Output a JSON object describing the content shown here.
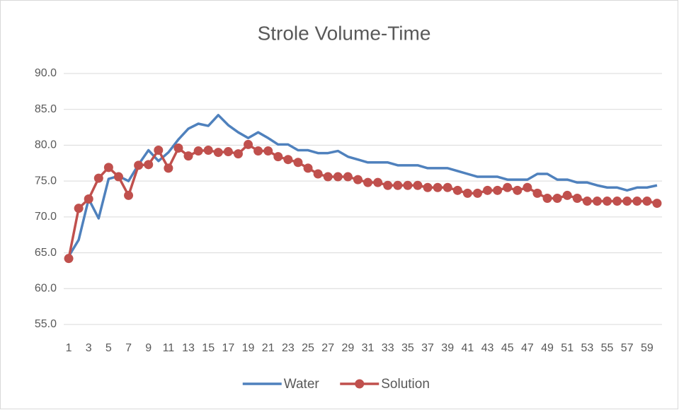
{
  "chart_data": {
    "type": "line",
    "title": "Strole Volume-Time",
    "categories": [
      1,
      null,
      3,
      null,
      5,
      null,
      7,
      null,
      9,
      null,
      11,
      null,
      13,
      null,
      15,
      null,
      17,
      null,
      19,
      null,
      21,
      null,
      23,
      null,
      25,
      null,
      27,
      null,
      29,
      null,
      31,
      null,
      33,
      null,
      35,
      null,
      37,
      null,
      39,
      null,
      41,
      null,
      43,
      null,
      45,
      null,
      47,
      null,
      49,
      null,
      51,
      null,
      53,
      null,
      55,
      null,
      57,
      null,
      59,
      null
    ],
    "series": [
      {
        "name": "Water",
        "color": "#4f81bd",
        "markers": false,
        "values": [
          64.5,
          66.8,
          72.5,
          69.8,
          75.3,
          75.7,
          75.0,
          77.3,
          79.3,
          77.8,
          79.0,
          80.8,
          82.3,
          83.0,
          82.7,
          84.2,
          82.8,
          81.8,
          81.0,
          81.8,
          81.0,
          80.1,
          80.1,
          79.3,
          79.3,
          78.9,
          78.9,
          79.2,
          78.4,
          78.0,
          77.6,
          77.6,
          77.6,
          77.2,
          77.2,
          77.2,
          76.8,
          76.8,
          76.8,
          76.4,
          76.0,
          75.6,
          75.6,
          75.6,
          75.2,
          75.2,
          75.2,
          76.0,
          76.0,
          75.2,
          75.2,
          74.8,
          74.8,
          74.4,
          74.1,
          74.1,
          73.7,
          74.1,
          74.1,
          74.4
        ]
      },
      {
        "name": "Solution",
        "color": "#c0504d",
        "markers": true,
        "values": [
          64.2,
          71.2,
          72.5,
          75.4,
          76.9,
          75.6,
          73.0,
          77.2,
          77.3,
          79.3,
          76.8,
          79.6,
          78.5,
          79.2,
          79.3,
          79.0,
          79.1,
          78.8,
          80.1,
          79.2,
          79.2,
          78.4,
          78.0,
          77.6,
          76.8,
          76.0,
          75.6,
          75.6,
          75.6,
          75.2,
          74.8,
          74.8,
          74.4,
          74.4,
          74.4,
          74.4,
          74.1,
          74.1,
          74.1,
          73.7,
          73.3,
          73.3,
          73.7,
          73.7,
          74.1,
          73.7,
          74.1,
          73.3,
          72.6,
          72.6,
          73.0,
          72.6,
          72.2,
          72.2,
          72.2,
          72.2,
          72.2,
          72.2,
          72.2,
          71.9
        ]
      }
    ],
    "ylim": [
      55,
      90
    ],
    "yticks": [
      {
        "value": 55,
        "label": "55.0"
      },
      {
        "value": 60,
        "label": "60.0"
      },
      {
        "value": 65,
        "label": "65.0"
      },
      {
        "value": 70,
        "label": "70.0"
      },
      {
        "value": 75,
        "label": "75.0"
      },
      {
        "value": 80,
        "label": "80.0"
      },
      {
        "value": 85,
        "label": "85.0"
      },
      {
        "value": 90,
        "label": "90.0"
      }
    ],
    "grid": true,
    "legend": "bottom"
  }
}
